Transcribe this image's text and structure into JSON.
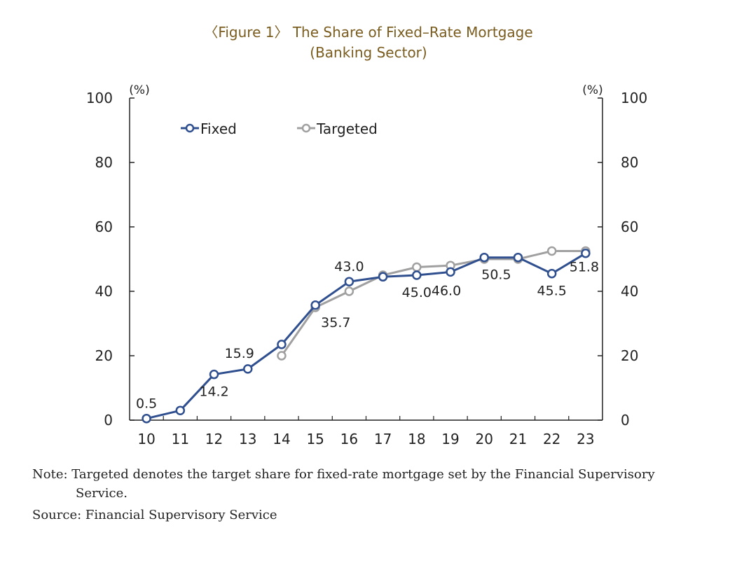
{
  "figure": {
    "title_line1": "〈Figure 1〉 The Share of Fixed–Rate Mortgage",
    "title_line2": "(Banking Sector)"
  },
  "chart_data": {
    "type": "line",
    "title": "〈Figure 1〉 The Share of Fixed–Rate Mortgage (Banking Sector)",
    "x": [
      "10",
      "11",
      "12",
      "13",
      "14",
      "15",
      "16",
      "17",
      "18",
      "19",
      "20",
      "21",
      "22",
      "23"
    ],
    "ylim": [
      0,
      100
    ],
    "yticks": [
      0,
      20,
      40,
      60,
      80,
      100
    ],
    "left_unit": "(%)",
    "right_unit": "(%)",
    "legend_position": "top-left",
    "series": [
      {
        "name": "Fixed",
        "color": "#2f4f8f",
        "values": [
          0.5,
          3.0,
          14.2,
          15.9,
          23.5,
          35.7,
          43.0,
          44.5,
          45.0,
          46.0,
          50.5,
          50.5,
          45.5,
          51.8
        ]
      },
      {
        "name": "Targeted",
        "color": "#a0a0a0",
        "values": [
          null,
          null,
          null,
          null,
          20.0,
          35.0,
          40.0,
          45.0,
          47.5,
          48.0,
          50.0,
          50.0,
          52.5,
          52.5
        ]
      }
    ],
    "data_labels": [
      {
        "series": "Fixed",
        "index": 0,
        "text": "0.5",
        "position": "above"
      },
      {
        "series": "Fixed",
        "index": 2,
        "text": "14.2",
        "position": "below"
      },
      {
        "series": "Fixed",
        "index": 3,
        "text": "15.9",
        "position": "above-left"
      },
      {
        "series": "Fixed",
        "index": 5,
        "text": "35.7",
        "position": "below-right"
      },
      {
        "series": "Fixed",
        "index": 6,
        "text": "43.0",
        "position": "above"
      },
      {
        "series": "Fixed",
        "index": 8,
        "text": "45.0",
        "position": "below"
      },
      {
        "series": "Fixed",
        "index": 9,
        "text": "46.0",
        "position": "below-left"
      },
      {
        "series": "Fixed",
        "index": 10,
        "text": "50.5",
        "position": "below-right"
      },
      {
        "series": "Fixed",
        "index": 12,
        "text": "45.5",
        "position": "below"
      },
      {
        "series": "Fixed",
        "index": 13,
        "text": "51.8",
        "position": "below"
      }
    ]
  },
  "notes": {
    "note_line1": "Note:  Targeted denotes the target share for fixed-rate mortgage set by the Financial Supervisory",
    "note_line2": "Service.",
    "source": "Source: Financial Supervisory Service"
  }
}
